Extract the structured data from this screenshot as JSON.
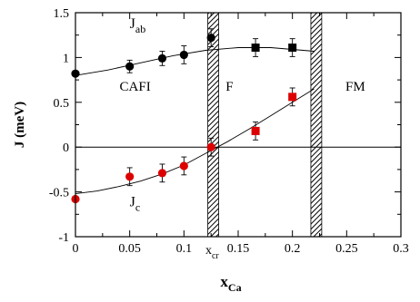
{
  "chart_data": {
    "type": "scatter",
    "xlabel": "x",
    "xlabel_sub": "Ca",
    "ylabel": "J (meV)",
    "xlim": [
      0,
      0.3
    ],
    "ylim": [
      -1,
      1.5
    ],
    "x_ticks": [
      0,
      0.05,
      0.1,
      0.15,
      0.2,
      0.25,
      0.3
    ],
    "x_tick_labels": [
      "0",
      "0.05",
      "0.1",
      "0.15",
      "0.2",
      "0.25",
      "0.3"
    ],
    "y_ticks": [
      -1,
      -0.5,
      0,
      0.5,
      1,
      1.5
    ],
    "y_tick_labels": [
      "-1",
      "-0.5",
      "0",
      "0.5",
      "1",
      "1.5"
    ],
    "grid": false,
    "zero_line": true,
    "hatched_bands": [
      {
        "x_start": 0.122,
        "x_end": 0.132
      },
      {
        "x_start": 0.217,
        "x_end": 0.227
      }
    ],
    "region_labels": [
      {
        "text": "CAFI",
        "x": 0.055,
        "y": 0.63
      },
      {
        "text": "F",
        "x": 0.142,
        "y": 0.63
      },
      {
        "text": "FM",
        "x": 0.258,
        "y": 0.63
      }
    ],
    "annotations": [
      {
        "text": "x",
        "sub": "cr",
        "x": 0.126,
        "y": -1.07
      }
    ],
    "series": [
      {
        "name": "J",
        "name_sub": "ab",
        "color": "#000000",
        "label_pos": {
          "x": 0.05,
          "y": 1.33
        },
        "circles": [
          {
            "x": 0,
            "y": 0.82,
            "err": 0
          },
          {
            "x": 0.05,
            "y": 0.9,
            "err": 0.07
          },
          {
            "x": 0.08,
            "y": 0.99,
            "err": 0.08
          },
          {
            "x": 0.1,
            "y": 1.03,
            "err": 0.1
          },
          {
            "x": 0.125,
            "y": 1.22,
            "err": 0.1
          }
        ],
        "squares": [
          {
            "x": 0.166,
            "y": 1.11,
            "err": 0.1
          },
          {
            "x": 0.2,
            "y": 1.11,
            "err": 0.1
          }
        ],
        "fit": [
          [
            0,
            0.8
          ],
          [
            0.03,
            0.86
          ],
          [
            0.06,
            0.94
          ],
          [
            0.09,
            1.02
          ],
          [
            0.12,
            1.08
          ],
          [
            0.15,
            1.11
          ],
          [
            0.18,
            1.11
          ],
          [
            0.21,
            1.08
          ],
          [
            0.22,
            1.07
          ]
        ]
      },
      {
        "name": "J",
        "name_sub": "c",
        "color": "#dd0000",
        "label_pos": {
          "x": 0.05,
          "y": -0.66
        },
        "circles": [
          {
            "x": 0,
            "y": -0.58,
            "err": 0
          },
          {
            "x": 0.05,
            "y": -0.33,
            "err": 0.1
          },
          {
            "x": 0.08,
            "y": -0.29,
            "err": 0.1
          },
          {
            "x": 0.1,
            "y": -0.21,
            "err": 0.1
          },
          {
            "x": 0.125,
            "y": 0.0,
            "err": 0.1
          }
        ],
        "squares": [
          {
            "x": 0.166,
            "y": 0.18,
            "err": 0.1
          },
          {
            "x": 0.2,
            "y": 0.56,
            "err": 0.1
          }
        ],
        "fit": [
          [
            0,
            -0.52
          ],
          [
            0.02,
            -0.49
          ],
          [
            0.04,
            -0.44
          ],
          [
            0.06,
            -0.38
          ],
          [
            0.08,
            -0.3
          ],
          [
            0.1,
            -0.2
          ],
          [
            0.12,
            -0.07
          ],
          [
            0.14,
            0.06
          ],
          [
            0.16,
            0.2
          ],
          [
            0.18,
            0.35
          ],
          [
            0.2,
            0.5
          ],
          [
            0.22,
            0.65
          ]
        ]
      }
    ]
  }
}
